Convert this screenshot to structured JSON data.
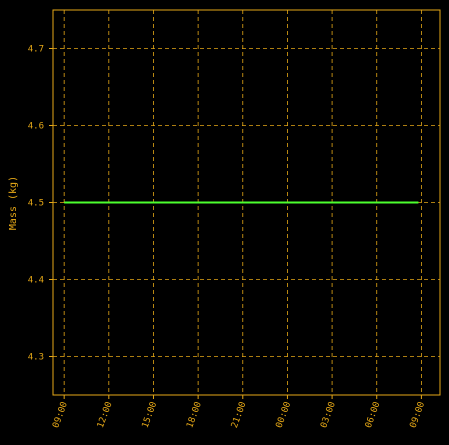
{
  "colors": {
    "background": "#000000",
    "axis": "#e6a817",
    "grid": "#e6a817",
    "tick_text": "#e6a817",
    "series": "#4cff2e"
  },
  "chart_data": {
    "type": "line",
    "title": "",
    "xlabel": "",
    "ylabel": "Mass (kg)",
    "x_ticks": [
      "09:00",
      "12:00",
      "15:00",
      "18:00",
      "21:00",
      "00:00",
      "03:00",
      "06:00",
      "09:00"
    ],
    "x_range_hours": [
      -0.75,
      25.25
    ],
    "y_ticks": [
      "4.3",
      "4.4",
      "4.5",
      "4.6",
      "4.7"
    ],
    "ylim": [
      4.25,
      4.75
    ],
    "grid": true,
    "grid_style": "dashed",
    "x_tick_rotation_deg": -70,
    "series": [
      {
        "x_hours": [
          0,
          23.8
        ],
        "values": [
          4.5,
          4.5
        ]
      }
    ]
  }
}
